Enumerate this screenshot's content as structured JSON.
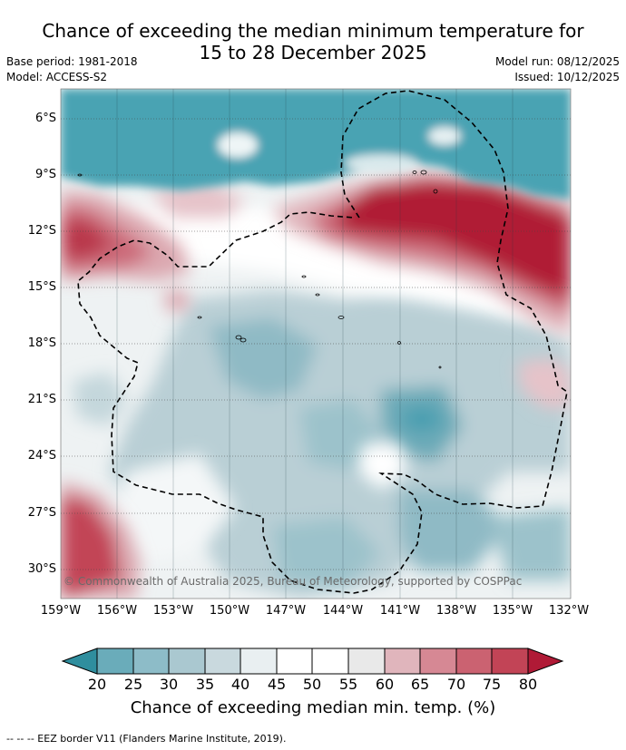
{
  "title_line1": "Chance of exceeding the median minimum temperature for",
  "title_line2": "15 to 28 December 2025",
  "base_period": "Base period: 1981-2018",
  "model": "Model: ACCESS-S2",
  "model_run": "Model run: 08/12/2025",
  "issued": "Issued: 10/12/2025",
  "lat_labels": [
    "6°S",
    "9°S",
    "12°S",
    "15°S",
    "18°S",
    "21°S",
    "24°S",
    "27°S",
    "30°S"
  ],
  "lon_labels": [
    "159°W",
    "156°W",
    "153°W",
    "150°W",
    "147°W",
    "144°W",
    "141°W",
    "138°W",
    "135°W",
    "132°W"
  ],
  "copyright": "© Commonwealth of Australia 2025, Bureau of Meteorology, supported by COSPPac",
  "colorbar": {
    "ticks": [
      "20",
      "25",
      "30",
      "35",
      "40",
      "45",
      "50",
      "55",
      "60",
      "65",
      "70",
      "75",
      "80"
    ],
    "label": "Chance of exceeding median min. temp. (%)",
    "colors": [
      "#2f8e9e",
      "#6aacba",
      "#8dbcc8",
      "#aac8d0",
      "#c9d9de",
      "#e9eff1",
      "#ffffff",
      "#ffffff",
      "#e9e9e9",
      "#e0b5bc",
      "#d68894",
      "#cb6271",
      "#c24456",
      "#b01a36"
    ]
  },
  "footnote": "-- -- -- EEZ border V11 (Flanders Marine Institute, 2019)."
}
